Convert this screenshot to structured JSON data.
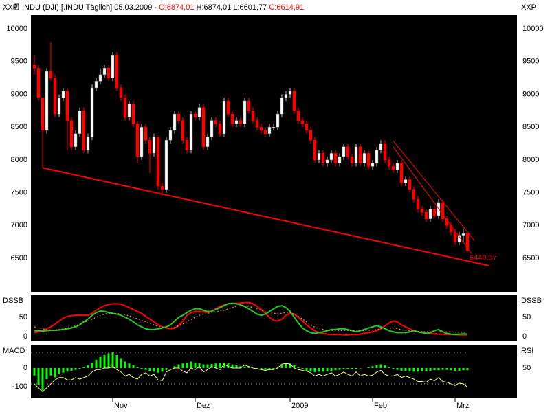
{
  "header": {
    "symbol_text": "INDU (DJI) [.INDU  Täglich] 05.03.2009 - ",
    "open": "O:6874,01",
    "high_low": " H:6874,01 L:6601,77 ",
    "close": "C:6614,91"
  },
  "chart_data": [
    {
      "type": "candlestick",
      "axis_label": "XXP",
      "categories": [
        null,
        null,
        null,
        null,
        null,
        null,
        null,
        null,
        null,
        null,
        null,
        null,
        null,
        null,
        null,
        null,
        null,
        null,
        null,
        "Nov",
        null,
        null,
        null,
        null,
        null,
        null,
        null,
        null,
        null,
        null,
        null,
        null,
        null,
        null,
        null,
        null,
        null,
        null,
        null,
        "Dez",
        null,
        null,
        null,
        null,
        null,
        null,
        null,
        null,
        null,
        null,
        null,
        null,
        null,
        null,
        null,
        null,
        null,
        null,
        null,
        null,
        null,
        null,
        "2009",
        null,
        null,
        null,
        null,
        null,
        null,
        null,
        null,
        null,
        null,
        null,
        null,
        null,
        null,
        null,
        null,
        null,
        null,
        null,
        "Feb",
        null,
        null,
        null,
        null,
        null,
        null,
        null,
        null,
        null,
        null,
        null,
        null,
        null,
        null,
        null,
        null,
        null,
        null,
        null,
        "Mrz",
        null,
        null,
        null
      ],
      "open": [
        9450,
        9400,
        8950,
        8450,
        9350,
        9250,
        8700,
        8950,
        9050,
        8600,
        8200,
        8400,
        8750,
        8150,
        8350,
        9100,
        9200,
        9300,
        9400,
        9250,
        9600,
        9100,
        8950,
        8650,
        8850,
        8550,
        8050,
        8500,
        8300,
        8100,
        8350,
        7600,
        7550,
        8300,
        8450,
        8700,
        8600,
        8300,
        8150,
        8700,
        8650,
        8800,
        8200,
        8350,
        8600,
        8550,
        8400,
        8900,
        8700,
        8550,
        8600,
        8550,
        8900,
        8750,
        8600,
        8500,
        8450,
        8400,
        8500,
        8500,
        8700,
        8950,
        9000,
        9050,
        8750,
        8600,
        8550,
        8450,
        8300,
        8000,
        8100,
        7950,
        8000,
        8100,
        7950,
        8050,
        8200,
        8050,
        7950,
        8200,
        7950,
        8100,
        7900,
        7950,
        8150,
        8250,
        8000,
        7900,
        7850,
        7950,
        7650,
        7700,
        7550,
        7400,
        7250,
        7200,
        7100,
        7250,
        7150,
        7350,
        7100,
        7000,
        6900,
        6750,
        6850,
        6874.01
      ],
      "high": [
        9600,
        9450,
        8950,
        9400,
        9800,
        9300,
        9000,
        9100,
        9100,
        8650,
        8450,
        8800,
        8800,
        8400,
        9150,
        9250,
        9400,
        9450,
        9450,
        9650,
        9650,
        9150,
        9000,
        8900,
        8900,
        8600,
        8550,
        8550,
        8350,
        8400,
        8350,
        7650,
        8350,
        8500,
        8750,
        8750,
        8650,
        8350,
        8750,
        8750,
        8850,
        8850,
        8400,
        8650,
        8650,
        8600,
        8950,
        8950,
        8750,
        8650,
        8650,
        8950,
        8950,
        8800,
        8650,
        8550,
        8500,
        8550,
        8550,
        8750,
        9000,
        9050,
        9100,
        9100,
        8800,
        8650,
        8600,
        8500,
        8350,
        8150,
        8150,
        8050,
        8150,
        8150,
        8100,
        8250,
        8250,
        8100,
        8250,
        8250,
        8150,
        8150,
        8000,
        8200,
        8300,
        8300,
        8050,
        7950,
        8000,
        8000,
        7750,
        7750,
        7600,
        7450,
        7300,
        7250,
        7300,
        7300,
        7400,
        7400,
        7150,
        7050,
        6950,
        6900,
        6950,
        6874.01
      ],
      "low": [
        9300,
        8900,
        7880,
        8400,
        9200,
        8650,
        8650,
        8900,
        8150,
        8150,
        8150,
        8350,
        8100,
        8100,
        8300,
        9050,
        9150,
        9250,
        9200,
        9200,
        9050,
        8900,
        8600,
        8600,
        8500,
        7950,
        8000,
        8250,
        7800,
        8050,
        7550,
        7450,
        7500,
        8250,
        8400,
        8550,
        8250,
        8100,
        8100,
        8600,
        8600,
        8150,
        8150,
        8300,
        8500,
        8350,
        8350,
        8650,
        8500,
        8500,
        8500,
        8500,
        8700,
        8550,
        8450,
        8400,
        8350,
        8350,
        8450,
        8450,
        8650,
        8900,
        8950,
        8700,
        8550,
        8500,
        8400,
        8250,
        7950,
        7950,
        7900,
        7900,
        7950,
        7900,
        7900,
        8000,
        8000,
        7900,
        7900,
        7900,
        7900,
        7850,
        7850,
        7900,
        8100,
        7950,
        7850,
        7800,
        7800,
        7600,
        7600,
        7500,
        7350,
        7200,
        7150,
        7050,
        7050,
        7100,
        7100,
        7050,
        6950,
        6850,
        6700,
        6700,
        6750,
        6601.77
      ],
      "close": [
        9400,
        8950,
        8450,
        9350,
        9250,
        8700,
        8950,
        9050,
        8600,
        8200,
        8400,
        8750,
        8150,
        8350,
        9100,
        9200,
        9300,
        9400,
        9250,
        9600,
        9100,
        8950,
        8650,
        8850,
        8550,
        8050,
        8500,
        8300,
        8100,
        8350,
        7600,
        7550,
        8300,
        8450,
        8700,
        8600,
        8300,
        8150,
        8700,
        8650,
        8800,
        8200,
        8350,
        8600,
        8550,
        8400,
        8900,
        8700,
        8550,
        8600,
        8550,
        8900,
        8750,
        8600,
        8500,
        8450,
        8400,
        8500,
        8500,
        8700,
        8950,
        9000,
        9050,
        8750,
        8600,
        8550,
        8450,
        8300,
        8000,
        8100,
        7950,
        8000,
        8100,
        7950,
        8050,
        8200,
        8050,
        7950,
        8200,
        7950,
        8100,
        7900,
        7950,
        8150,
        8250,
        8000,
        7900,
        7850,
        7950,
        7650,
        7700,
        7550,
        7400,
        7250,
        7200,
        7100,
        7250,
        7150,
        7350,
        7100,
        7000,
        6900,
        6750,
        6850,
        6875,
        6614.91
      ],
      "up_color": "#ffffff",
      "down_color": "#ff0000",
      "ylim": [
        5987,
        10210
      ],
      "yticks": [
        6500,
        7000,
        7500,
        8000,
        8500,
        9000,
        9500,
        10000
      ],
      "trendlines": [
        {
          "color": "#ff0000",
          "x": [
            2,
            110.3
          ],
          "values": [
            7880,
            6385
          ]
        },
        {
          "color": "#ff0000",
          "x": [
            87,
            106.7
          ],
          "values": [
            8290,
            6770
          ]
        },
        {
          "color": "#ff0000",
          "x": [
            87,
            106
          ],
          "values": [
            8200,
            6570
          ]
        }
      ],
      "annotations": [
        {
          "text": "6440,97",
          "x": 105.5,
          "value": 6440.97,
          "color": "#ff0000"
        }
      ]
    },
    {
      "type": "line",
      "axis_label": "DSSB",
      "ylim": [
        -12.5,
        107
      ],
      "yticks": [
        0,
        50
      ],
      "series": [
        {
          "color": "#ff0000",
          "values": [
            10,
            12,
            15,
            20,
            25,
            32,
            40,
            48,
            52,
            54,
            55,
            55,
            55,
            55,
            60,
            68,
            75,
            80,
            83,
            85,
            85,
            84,
            80,
            75,
            70,
            65,
            60,
            52,
            45,
            38,
            30,
            25,
            22,
            20,
            22,
            28,
            40,
            55,
            62,
            65,
            65,
            64,
            62,
            66,
            72,
            78,
            82,
            85,
            86,
            86,
            87,
            88,
            88,
            85,
            78,
            70,
            60,
            50,
            42,
            40,
            45,
            55,
            60,
            58,
            50,
            40,
            30,
            22,
            15,
            10,
            8,
            6,
            5,
            5,
            5,
            4,
            4,
            5,
            5,
            6,
            8,
            10,
            12,
            15,
            20,
            28,
            35,
            40,
            38,
            30,
            25,
            20,
            15,
            12,
            10,
            8,
            8,
            7,
            6,
            6,
            5,
            5,
            5,
            4,
            4,
            4
          ]
        },
        {
          "color": "#22cc22",
          "values": [
            15,
            15,
            14,
            15,
            16,
            16,
            17,
            18,
            20,
            22,
            25,
            30,
            38,
            45,
            55,
            62,
            66,
            65,
            62,
            60,
            58,
            55,
            50,
            45,
            38,
            30,
            25,
            20,
            18,
            18,
            20,
            22,
            25,
            30,
            40,
            50,
            55,
            62,
            68,
            72,
            72,
            68,
            65,
            65,
            70,
            75,
            80,
            85,
            86,
            85,
            82,
            78,
            72,
            65,
            58,
            55,
            58,
            65,
            72,
            78,
            80,
            75,
            65,
            50,
            35,
            22,
            15,
            10,
            8,
            10,
            12,
            15,
            18,
            18,
            20,
            20,
            18,
            15,
            12,
            15,
            18,
            22,
            25,
            28,
            25,
            20,
            15,
            12,
            10,
            10,
            10,
            12,
            15,
            12,
            10,
            8,
            10,
            15,
            18,
            12,
            8,
            6,
            5,
            6,
            7,
            6
          ]
        },
        {
          "color": "#ffa040",
          "dashed": true,
          "values": [
            25,
            22,
            20,
            18,
            17,
            17,
            18,
            20,
            22,
            25,
            28,
            32,
            36,
            40,
            45,
            50,
            54,
            58,
            60,
            60,
            60,
            58,
            56,
            54,
            50,
            46,
            42,
            38,
            34,
            30,
            26,
            24,
            22,
            22,
            24,
            28,
            32,
            38,
            44,
            50,
            55,
            58,
            60,
            62,
            64,
            66,
            68,
            72,
            75,
            78,
            80,
            80,
            78,
            75,
            72,
            68,
            64,
            62,
            60,
            60,
            60,
            62,
            62,
            58,
            52,
            45,
            38,
            30,
            24,
            20,
            18,
            16,
            15,
            15,
            15,
            15,
            15,
            15,
            15,
            15,
            15,
            16,
            17,
            18,
            20,
            22,
            22,
            22,
            20,
            18,
            16,
            15,
            14,
            13,
            13,
            12,
            12,
            12,
            12,
            12,
            12,
            12,
            11,
            11,
            11,
            10
          ]
        }
      ]
    },
    {
      "type": "macd",
      "axis_label": "MACD",
      "axis_label2": "RSI",
      "ylim": [
        -163,
        122
      ],
      "yticks": [
        0,
        -100
      ],
      "y2lim": [
        11.7,
        78.7
      ],
      "y2ticks": [
        50
      ],
      "reference_lines": [
        70,
        30
      ],
      "series": [
        {
          "color": "#00ff00",
          "values": [
            -40,
            -90,
            -120,
            -60,
            -40,
            -50,
            -30,
            -25,
            -20,
            -15,
            -10,
            -5,
            5,
            15,
            30,
            45,
            60,
            70,
            80,
            85,
            70,
            50,
            35,
            25,
            15,
            5,
            -5,
            -10,
            -15,
            -20,
            -25,
            -20,
            -10,
            0,
            10,
            20,
            25,
            30,
            35,
            30,
            25,
            20,
            20,
            22,
            25,
            28,
            30,
            25,
            20,
            15,
            10,
            8,
            5,
            0,
            -5,
            -8,
            -10,
            -10,
            -5,
            5,
            15,
            25,
            25,
            15,
            5,
            -5,
            -15,
            -20,
            -22,
            -20,
            -20,
            -18,
            -15,
            -12,
            -10,
            -8,
            -5,
            -5,
            -5,
            -2,
            0,
            5,
            10,
            15,
            20,
            15,
            5,
            -5,
            -10,
            -15,
            -15,
            -18,
            -20,
            -20,
            -18,
            -15,
            -15,
            -12,
            -12,
            -10,
            -10,
            -12,
            -15,
            -15,
            -12,
            -12
          ]
        },
        {
          "color": "#ffff80",
          "axis": "y2",
          "values": [
            30,
            25,
            20,
            25,
            30,
            35,
            38,
            38,
            35,
            35,
            38,
            36,
            38,
            40,
            45,
            48,
            48,
            50,
            50,
            52,
            48,
            45,
            40,
            42,
            38,
            36,
            42,
            44,
            40,
            42,
            35,
            34,
            45,
            48,
            50,
            50,
            46,
            44,
            50,
            48,
            52,
            45,
            48,
            52,
            50,
            48,
            55,
            52,
            50,
            50,
            50,
            54,
            52,
            50,
            49,
            48,
            47,
            48,
            48,
            50,
            55,
            56,
            55,
            50,
            48,
            47,
            46,
            44,
            40,
            42,
            40,
            42,
            44,
            40,
            42,
            45,
            42,
            40,
            45,
            40,
            42,
            40,
            41,
            45,
            47,
            42,
            40,
            40,
            42,
            38,
            40,
            38,
            36,
            33,
            33,
            32,
            36,
            34,
            38,
            33,
            32,
            30,
            28,
            31,
            30,
            26
          ]
        }
      ]
    }
  ]
}
